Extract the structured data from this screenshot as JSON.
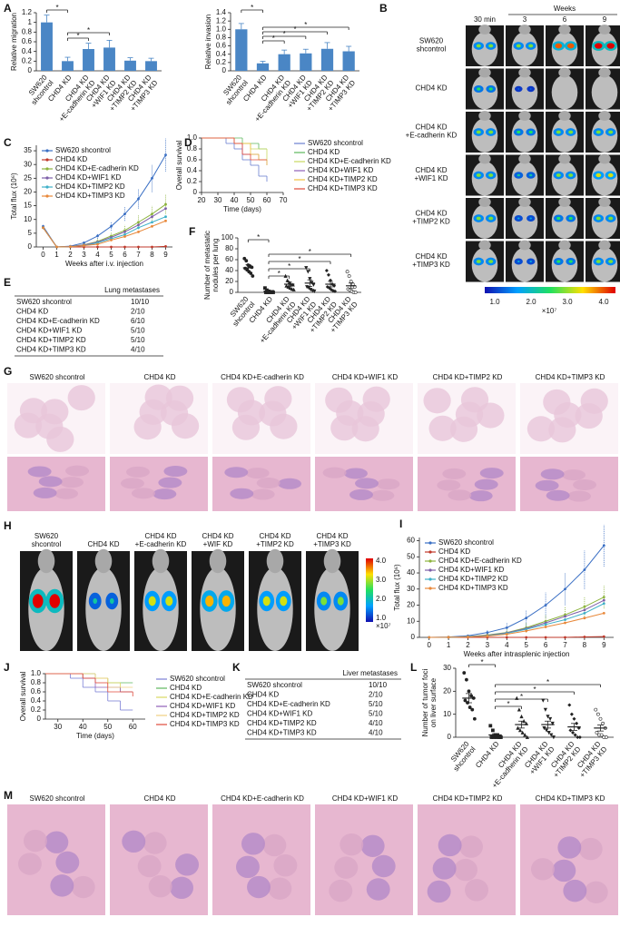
{
  "panel_letters": [
    "A",
    "B",
    "C",
    "D",
    "E",
    "F",
    "G",
    "H",
    "I",
    "J",
    "K",
    "L",
    "M"
  ],
  "chart_data": [
    {
      "type": "bar",
      "ylabel": "Relative migration",
      "categories": [
        [
          "SW620",
          "shcontrol"
        ],
        [
          "CHD4 KD"
        ],
        [
          "CHD4 KD",
          "+E-cadherin KD"
        ],
        [
          "CHD4 KD",
          "+WIF1 KD"
        ],
        [
          "CHD4 KD",
          "+TIMP2 KD"
        ],
        [
          "CHD4 KD",
          "+TIMP3 KD"
        ]
      ],
      "values": [
        1.0,
        0.2,
        0.45,
        0.48,
        0.21,
        0.2
      ],
      "errors": [
        0.15,
        0.08,
        0.12,
        0.15,
        0.06,
        0.06
      ],
      "color": "#4a86c5",
      "ylim": [
        0,
        1.2
      ],
      "yticks": [
        0,
        0.2,
        0.4,
        0.6,
        0.8,
        1,
        1.2
      ],
      "significance": [
        "*",
        "*",
        "*"
      ]
    },
    {
      "type": "bar",
      "ylabel": "Relative invasion",
      "categories": [
        [
          "SW620",
          "shcontrol"
        ],
        [
          "CHD4 KD"
        ],
        [
          "CHD4 KD",
          "+E-cadherin KD"
        ],
        [
          "CHD4 KD",
          "+WIF1 KD"
        ],
        [
          "CHD4 KD",
          "+TIMP2 KD"
        ],
        [
          "CHD4 KD",
          "+TIMP3 KD"
        ]
      ],
      "values": [
        1.0,
        0.18,
        0.4,
        0.42,
        0.53,
        0.47
      ],
      "errors": [
        0.14,
        0.05,
        0.1,
        0.1,
        0.15,
        0.12
      ],
      "color": "#4a86c5",
      "ylim": [
        0,
        1.4
      ],
      "yticks": [
        0,
        0.2,
        0.4,
        0.6,
        0.8,
        {
          "value": 1,
          "label": "1.0"
        },
        1.2,
        1.4
      ],
      "significance": [
        "*",
        "*",
        "*",
        "*",
        "*"
      ]
    },
    {
      "type": "line",
      "ylabel": "Total flux (10⁶)",
      "xlabel": "Weeks after i.v. injection",
      "x": [
        0,
        1,
        2,
        3,
        4,
        5,
        6,
        7,
        8,
        9
      ],
      "xlim": [
        -0.5,
        9.5
      ],
      "xticks": [
        0,
        1,
        2,
        3,
        4,
        5,
        6,
        7,
        8,
        9
      ],
      "ylim": [
        0,
        37
      ],
      "yticks": [
        0,
        5,
        10,
        15,
        20,
        25,
        30,
        35
      ],
      "legend": "upper left",
      "series": [
        {
          "name": "SW620 shcontrol",
          "color": "#3a6fc4",
          "values": [
            7.5,
            0,
            0.3,
            1.5,
            4,
            7.5,
            12,
            17.5,
            25,
            33.5
          ],
          "errors": [
            0.5,
            0,
            0.2,
            0.5,
            1,
            1.5,
            2.5,
            3.5,
            5,
            6
          ]
        },
        {
          "name": "CHD4 KD",
          "color": "#c0392b",
          "values": [
            7,
            0,
            0,
            0,
            0,
            0,
            0,
            0,
            0,
            0.2
          ]
        },
        {
          "name": "CHD4 KD+E-cadherin KD",
          "color": "#8db43e",
          "values": [
            7,
            0,
            0.2,
            0.8,
            2,
            4,
            6,
            9,
            12,
            15.5
          ],
          "errors": [
            0.5,
            0,
            0.1,
            0.4,
            0.8,
            1.2,
            2,
            2.5,
            3,
            3.5
          ]
        },
        {
          "name": "CHD4 KD+WIF1 KD",
          "color": "#7d5fa8",
          "values": [
            7,
            0,
            0.2,
            0.7,
            1.8,
            3.5,
            5.5,
            8,
            11,
            14
          ]
        },
        {
          "name": "CHD4 KD+TIMP2 KD",
          "color": "#3fb0c8",
          "values": [
            7,
            0,
            0.1,
            0.5,
            1.5,
            3,
            4.5,
            7,
            9,
            11
          ]
        },
        {
          "name": "CHD4 KD+TIMP3 KD",
          "color": "#e8883a",
          "values": [
            7,
            0,
            0.1,
            0.5,
            1,
            2.5,
            3.8,
            5.5,
            7.5,
            9.5
          ]
        }
      ]
    },
    {
      "type": "step",
      "ylabel": "Overall survival",
      "xlabel": "Time (days)",
      "xlim": [
        20,
        70
      ],
      "xticks": [
        20,
        30,
        40,
        50,
        60,
        70
      ],
      "ylim": [
        0,
        1
      ],
      "yticks": [
        0,
        0.2,
        0.4,
        0.6,
        0.8,
        {
          "value": 1,
          "label": "1.0"
        }
      ],
      "legend": "right",
      "series": [
        {
          "name": "SW620 shcontrol",
          "color": "#6a7fd0",
          "x": [
            20,
            35,
            40,
            45,
            50,
            55,
            60
          ],
          "values": [
            1,
            0.9,
            0.8,
            0.6,
            0.5,
            0.3,
            0.2
          ]
        },
        {
          "name": "CHD4 KD",
          "color": "#5cb85c",
          "x": [
            20,
            45,
            55,
            60
          ],
          "values": [
            1,
            0.9,
            0.8,
            0.8
          ]
        },
        {
          "name": "CHD4 KD+E-cadherin KD",
          "color": "#c9d860",
          "x": [
            20,
            40,
            50,
            60
          ],
          "values": [
            1,
            0.9,
            0.8,
            0.6
          ]
        },
        {
          "name": "CHD4 KD+WIF1 KD",
          "color": "#8e5fb8",
          "x": [
            20,
            40,
            45,
            55,
            60
          ],
          "values": [
            1,
            0.9,
            0.7,
            0.6,
            0.5
          ]
        },
        {
          "name": "CHD4 KD+TIMP2 KD",
          "color": "#f0c040",
          "x": [
            20,
            40,
            50,
            55,
            60
          ],
          "values": [
            1,
            0.9,
            0.7,
            0.6,
            0.5
          ]
        },
        {
          "name": "CHD4 KD+TIMP3 KD",
          "color": "#e04a3a",
          "x": [
            20,
            40,
            45,
            50,
            60
          ],
          "values": [
            1,
            0.9,
            0.7,
            0.6,
            0.6
          ]
        }
      ]
    },
    {
      "type": "dot",
      "ylabel": [
        "Number of metastatic",
        "nodules per lung"
      ],
      "categories": [
        [
          "SW620",
          "shcontrol"
        ],
        [
          "CHD4 KD"
        ],
        [
          "CHD4 KD",
          "+E-cadherin KD"
        ],
        [
          "CHD4 KD",
          "+WIF1 KD"
        ],
        [
          "CHD4 KD",
          "+TIMP2 KD"
        ],
        [
          "CHD4 KD",
          "+TIMP3 KD"
        ]
      ],
      "values": [
        45,
        2,
        15,
        17,
        15,
        12
      ],
      "errors": [
        6,
        1,
        4,
        6,
        5,
        5
      ],
      "points": [
        [
          62,
          58,
          50,
          48,
          46,
          44,
          42,
          38,
          35,
          30
        ],
        [
          8,
          4,
          2,
          1,
          1,
          0,
          0,
          0,
          0,
          0
        ],
        [
          30,
          22,
          18,
          15,
          14,
          12,
          10,
          8,
          6,
          5
        ],
        [
          45,
          38,
          25,
          18,
          14,
          10,
          8,
          5,
          3,
          2
        ],
        [
          40,
          32,
          22,
          15,
          12,
          10,
          8,
          5,
          3,
          2
        ],
        [
          38,
          30,
          20,
          15,
          10,
          6,
          4,
          2,
          0,
          0
        ]
      ],
      "color": "#222222",
      "ylim": [
        0,
        100
      ],
      "yticks": [
        0,
        20,
        40,
        60,
        80,
        100
      ],
      "significance": [
        "*",
        "*",
        "*",
        "*",
        "*"
      ]
    },
    {
      "type": "line",
      "ylabel": "Total flux (10⁶)",
      "xlabel": "Weeks after intrasplenic injection",
      "x": [
        0,
        1,
        2,
        3,
        4,
        5,
        6,
        7,
        8,
        9
      ],
      "xlim": [
        -0.5,
        9.5
      ],
      "xticks": [
        0,
        1,
        2,
        3,
        4,
        5,
        6,
        7,
        8,
        9
      ],
      "ylim": [
        0,
        62
      ],
      "yticks": [
        0,
        10,
        20,
        30,
        40,
        50,
        60
      ],
      "legend": "upper left",
      "series": [
        {
          "name": "SW620 shcontrol",
          "color": "#3a6fc4",
          "values": [
            0,
            0.2,
            1,
            3,
            6,
            12,
            20,
            30,
            42,
            57
          ],
          "errors": [
            0,
            0.2,
            0.6,
            1.5,
            3,
            5,
            8,
            10,
            12,
            13
          ]
        },
        {
          "name": "CHD4 KD",
          "color": "#c0392b",
          "values": [
            0,
            0,
            0,
            0,
            0,
            0,
            0,
            0,
            0.3,
            0.5
          ]
        },
        {
          "name": "CHD4 KD+E-cadherin KD",
          "color": "#8db43e",
          "values": [
            0,
            0.1,
            0.5,
            1.5,
            3,
            6,
            10,
            14,
            19,
            25
          ],
          "errors": [
            0,
            0.1,
            0.3,
            1,
            2,
            3,
            4,
            5,
            6,
            7
          ]
        },
        {
          "name": "CHD4 KD+WIF1 KD",
          "color": "#7d5fa8",
          "values": [
            0,
            0.1,
            0.5,
            1.2,
            2.8,
            5.5,
            9,
            13,
            17,
            23
          ]
        },
        {
          "name": "CHD4 KD+TIMP2 KD",
          "color": "#3fb0c8",
          "values": [
            0,
            0.1,
            0.4,
            1,
            2.5,
            5,
            8,
            11,
            15,
            21
          ]
        },
        {
          "name": "CHD4 KD+TIMP3 KD",
          "color": "#e8883a",
          "values": [
            0,
            0.1,
            0.3,
            0.8,
            2,
            4,
            6.5,
            9,
            12,
            15
          ]
        }
      ]
    },
    {
      "type": "step",
      "ylabel": "Overall survival",
      "xlabel": "Time (days)",
      "xlim": [
        25,
        65
      ],
      "xticks": [
        30,
        40,
        50,
        60
      ],
      "ylim": [
        0,
        1
      ],
      "yticks": [
        0,
        0.2,
        0.4,
        0.6,
        0.8,
        {
          "value": 1,
          "label": "1.0"
        }
      ],
      "legend": "right",
      "series": [
        {
          "name": "SW620 shcontrol",
          "color": "#7b7fd6",
          "x": [
            25,
            35,
            40,
            45,
            50,
            55,
            60
          ],
          "values": [
            1,
            0.9,
            0.7,
            0.6,
            0.4,
            0.2,
            0.2
          ]
        },
        {
          "name": "CHD4 KD",
          "color": "#5cb85c",
          "x": [
            25,
            45,
            50,
            60
          ],
          "values": [
            1,
            0.9,
            0.8,
            0.8
          ]
        },
        {
          "name": "CHD4 KD+E-cadherin KD",
          "color": "#d9d860",
          "x": [
            25,
            40,
            50,
            55,
            60
          ],
          "values": [
            1,
            0.9,
            0.8,
            0.6,
            0.6
          ]
        },
        {
          "name": "CHD4 KD+WIF1 KD",
          "color": "#8e5fb8",
          "x": [
            25,
            40,
            45,
            55,
            60
          ],
          "values": [
            1,
            0.9,
            0.7,
            0.6,
            0.6
          ]
        },
        {
          "name": "CHD4 KD+TIMP2 KD",
          "color": "#f0d080",
          "x": [
            25,
            45,
            50,
            60
          ],
          "values": [
            1,
            0.9,
            0.7,
            0.7
          ]
        },
        {
          "name": "CHD4 KD+TIMP3 KD",
          "color": "#e04a3a",
          "x": [
            25,
            40,
            45,
            50,
            60
          ],
          "values": [
            1,
            0.9,
            0.8,
            0.6,
            0.5
          ]
        }
      ]
    },
    {
      "type": "dot",
      "ylabel": [
        "Number of tumor foci",
        "on liver surface"
      ],
      "categories": [
        [
          "SW620",
          "shcontrol"
        ],
        [
          "CHD4 KD"
        ],
        [
          "CHD4 KD",
          "+E-cadherin KD"
        ],
        [
          "CHD4 KD",
          "+WIF1 KD"
        ],
        [
          "CHD4 KD",
          "+TIMP2 KD"
        ],
        [
          "CHD4 KD",
          "+TIMP3 KD"
        ]
      ],
      "values": [
        17,
        1,
        5.5,
        5.5,
        4.5,
        4
      ],
      "errors": [
        2,
        0.5,
        1.5,
        1.5,
        1.5,
        1.3
      ],
      "points": [
        [
          28,
          25,
          20,
          18,
          17,
          16,
          15,
          13,
          12,
          8
        ],
        [
          5,
          3,
          1,
          1,
          0,
          0,
          0,
          0,
          0,
          0
        ],
        [
          17,
          12,
          9,
          7,
          6,
          4,
          3,
          2,
          1,
          0
        ],
        [
          16,
          12,
          9,
          8,
          6,
          4,
          3,
          2,
          1,
          0
        ],
        [
          14,
          10,
          8,
          6,
          4,
          3,
          2,
          1,
          0,
          0
        ],
        [
          12,
          10,
          8,
          6,
          4,
          2,
          1,
          1,
          0,
          0
        ]
      ],
      "color": "#222222",
      "ylim": [
        0,
        30
      ],
      "yticks": [
        0,
        10,
        20,
        30
      ],
      "significance": [
        "*",
        "*",
        "*",
        "*",
        "*"
      ]
    }
  ],
  "B": {
    "header": "Weeks",
    "columns": [
      "30 min",
      "3",
      "6",
      "9"
    ],
    "rows": [
      [
        "SW620",
        "shcontrol"
      ],
      [
        "CHD4 KD"
      ],
      [
        "CHD4 KD",
        "+E-cadherin KD"
      ],
      [
        "CHD4 KD",
        "+WIF1 KD"
      ],
      [
        "CHD4 KD",
        "+TIMP2 KD"
      ],
      [
        "CHD4 KD",
        "+TIMP3 KD"
      ]
    ],
    "colorbar": [
      "1.0",
      "2.0",
      "3.0",
      "4.0"
    ],
    "exponent": "×10⁷"
  },
  "E": {
    "header": "Lung metastases",
    "rows": [
      [
        "SW620 shcontrol",
        "10/10"
      ],
      [
        "CHD4 KD",
        "2/10"
      ],
      [
        "CHD4 KD+E-cadherin KD",
        "6/10"
      ],
      [
        "CHD4 KD+WIF1 KD",
        "5/10"
      ],
      [
        "CHD4 KD+TIMP2 KD",
        "5/10"
      ],
      [
        "CHD4 KD+TIMP3 KD",
        "4/10"
      ]
    ]
  },
  "G": {
    "labels": [
      "SW620 shcontrol",
      "CHD4 KD",
      "CHD4 KD+E-cadherin KD",
      "CHD4 KD+WIF1 KD",
      "CHD4 KD+TIMP2 KD",
      "CHD4 KD+TIMP3 KD"
    ]
  },
  "H": {
    "labels": [
      [
        "SW620",
        "shcontrol"
      ],
      [
        "CHD4 KD"
      ],
      [
        "CHD4 KD",
        "+E-cadherin KD"
      ],
      [
        "CHD4 KD",
        "+WIF KD"
      ],
      [
        "CHD4 KD",
        "+TIMP2 KD"
      ],
      [
        "CHD4 KD",
        "+TIMP3 KD"
      ]
    ],
    "colorbar": [
      "4.0",
      "3.0",
      "2.0",
      "1.0"
    ],
    "exponent": "×10⁷"
  },
  "K": {
    "header": "Liver metastases",
    "rows": [
      [
        "SW620 shcontrol",
        "10/10"
      ],
      [
        "CHD4 KD",
        "2/10"
      ],
      [
        "CHD4 KD+E-cadherin KD",
        "5/10"
      ],
      [
        "CHD4 KD+WIF1 KD",
        "5/10"
      ],
      [
        "CHD4 KD+TIMP2 KD",
        "4/10"
      ],
      [
        "CHD4 KD+TIMP3 KD",
        "4/10"
      ]
    ]
  },
  "M": {
    "labels": [
      "SW620 shcontrol",
      "CHD4 KD",
      "CHD4 KD+E-cadherin KD",
      "CHD4 KD+WIF1 KD",
      "CHD4 KD+TIMP2 KD",
      "CHD4 KD+TIMP3 KD"
    ]
  }
}
